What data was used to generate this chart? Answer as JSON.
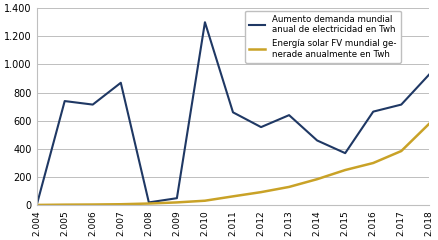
{
  "years": [
    2004,
    2005,
    2006,
    2007,
    2008,
    2009,
    2010,
    2011,
    2012,
    2013,
    2014,
    2015,
    2016,
    2017,
    2018
  ],
  "demand": [
    0,
    740,
    715,
    870,
    20,
    50,
    1300,
    660,
    555,
    640,
    460,
    370,
    665,
    715,
    930
  ],
  "solar": [
    2,
    4,
    5,
    7,
    12,
    20,
    32,
    63,
    93,
    130,
    185,
    250,
    300,
    385,
    580
  ],
  "demand_color": "#1F3864",
  "solar_color": "#C9A227",
  "bg_color": "#FFFFFF",
  "grid_color": "#BFBFBF",
  "ylim": [
    0,
    1400
  ],
  "yticks": [
    0,
    200,
    400,
    600,
    800,
    1000,
    1200,
    1400
  ],
  "ytick_labels": [
    "0",
    "200",
    "400",
    "600",
    "800",
    "1.000",
    "1.200",
    "1.400"
  ],
  "legend_label1": "Aumento demanda mundial\nanual de electricidad en Twh",
  "legend_label2": "Energía solar FV mundial ge-\nnerade anualmente en Twh"
}
